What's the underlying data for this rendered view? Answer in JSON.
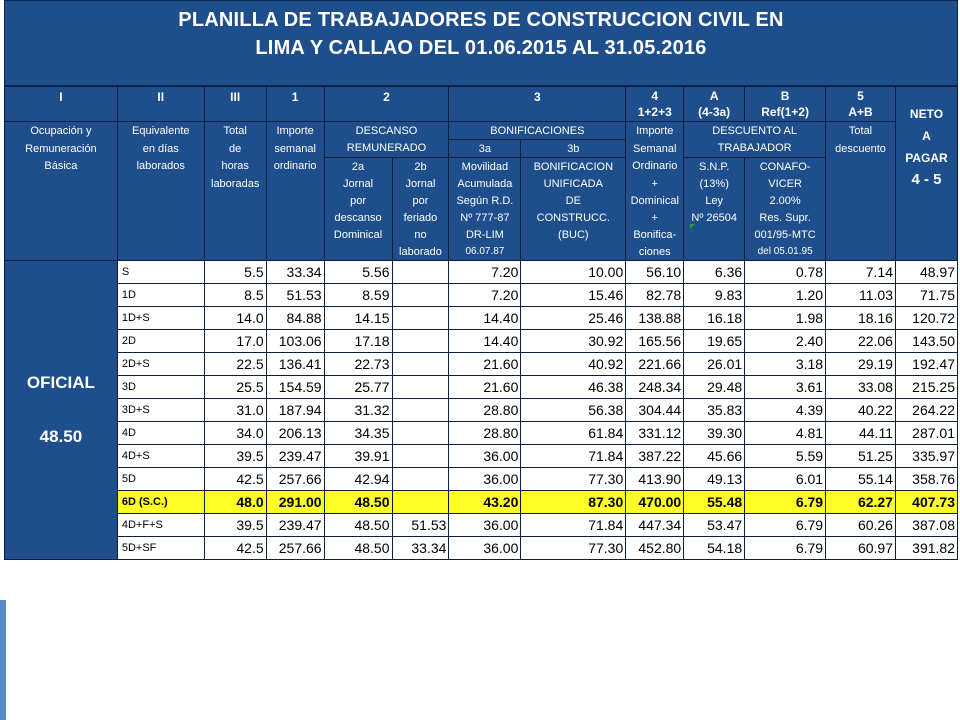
{
  "title": {
    "line1": "PLANILLA DE TRABAJADORES DE CONSTRUCCION CIVIL EN",
    "line2": "LIMA Y CALLAO DEL 01.06.2015 AL 31.05.2016"
  },
  "codes": [
    "I",
    "II",
    "III",
    "1",
    "2",
    "3",
    "4",
    "A",
    "B",
    "5"
  ],
  "formulas": {
    "c4": "1+2+3",
    "cA": "(4-3a)",
    "cB": "Ref(1+2)",
    "c5": "A+B"
  },
  "headers": {
    "ocupacion": [
      "Ocupación y",
      "Remuneración",
      "Básica"
    ],
    "equivalente": [
      "Equivalente",
      "en días",
      "laborados"
    ],
    "total_horas": [
      "Total",
      "de",
      "horas",
      "laboradas"
    ],
    "importe_ord": [
      "Importe",
      "semanal",
      "ordinario"
    ],
    "descanso": [
      "DESCANSO",
      "REMUNERADO"
    ],
    "bonif": "BONIFICACIONES",
    "c3a": "3a",
    "c3b": "3b",
    "c4": [
      "Importe",
      "Semanal",
      "Ordinario",
      "+",
      "Dominical",
      "+",
      "Bonifica-",
      "ciones"
    ],
    "descuento": [
      "DESCUENTO AL",
      "TRABAJADOR"
    ],
    "total_desc": [
      "Total",
      "descuento"
    ],
    "neto": [
      "NETO",
      "A",
      "PAGAR",
      "4 - 5"
    ],
    "c2a": [
      "2a",
      "Jornal",
      "por",
      "descanso",
      "Dominical"
    ],
    "c2b": [
      "2b",
      "Jornal",
      "por",
      "feriado",
      "no",
      "laborado"
    ],
    "c3a_desc": [
      "Movilidad",
      "Acumulada",
      "Según R.D.",
      "Nº 777-87",
      "DR-LIM",
      "06.07.87"
    ],
    "c3b_desc": [
      "BONIFICACION",
      "UNIFICADA",
      "DE",
      "CONSTRUCC.",
      "(BUC)"
    ],
    "cA_desc": [
      "S.N.P.",
      "(13%)",
      "Ley",
      "Nº 26504"
    ],
    "cB_desc": [
      "CONAFO-",
      "VICER",
      "2.00%",
      "Res. Supr.",
      "001/95-MTC",
      "del 05.01.95"
    ]
  },
  "category": {
    "name": "OFICIAL",
    "wage": "48.50"
  },
  "rows": [
    {
      "cat": "S",
      "hrs": "5.5",
      "imp": "33.34",
      "d2a": "5.56",
      "d2b": "",
      "mov": "7.20",
      "buc": "10.00",
      "c4": "56.10",
      "snp": "6.36",
      "conaf": "0.78",
      "tdesc": "7.14",
      "neto": "48.97"
    },
    {
      "cat": "1D",
      "hrs": "8.5",
      "imp": "51.53",
      "d2a": "8.59",
      "d2b": "",
      "mov": "7.20",
      "buc": "15.46",
      "c4": "82.78",
      "snp": "9.83",
      "conaf": "1.20",
      "tdesc": "11.03",
      "neto": "71.75"
    },
    {
      "cat": "1D+S",
      "hrs": "14.0",
      "imp": "84.88",
      "d2a": "14.15",
      "d2b": "",
      "mov": "14.40",
      "buc": "25.46",
      "c4": "138.88",
      "snp": "16.18",
      "conaf": "1.98",
      "tdesc": "18.16",
      "neto": "120.72"
    },
    {
      "cat": "2D",
      "hrs": "17.0",
      "imp": "103.06",
      "d2a": "17.18",
      "d2b": "",
      "mov": "14.40",
      "buc": "30.92",
      "c4": "165.56",
      "snp": "19.65",
      "conaf": "2.40",
      "tdesc": "22.06",
      "neto": "143.50"
    },
    {
      "cat": "2D+S",
      "hrs": "22.5",
      "imp": "136.41",
      "d2a": "22.73",
      "d2b": "",
      "mov": "21.60",
      "buc": "40.92",
      "c4": "221.66",
      "snp": "26.01",
      "conaf": "3.18",
      "tdesc": "29.19",
      "neto": "192.47"
    },
    {
      "cat": "3D",
      "hrs": "25.5",
      "imp": "154.59",
      "d2a": "25.77",
      "d2b": "",
      "mov": "21.60",
      "buc": "46.38",
      "c4": "248.34",
      "snp": "29.48",
      "conaf": "3.61",
      "tdesc": "33.08",
      "neto": "215.25"
    },
    {
      "cat": "3D+S",
      "hrs": "31.0",
      "imp": "187.94",
      "d2a": "31.32",
      "d2b": "",
      "mov": "28.80",
      "buc": "56.38",
      "c4": "304.44",
      "snp": "35.83",
      "conaf": "4.39",
      "tdesc": "40.22",
      "neto": "264.22"
    },
    {
      "cat": "4D",
      "hrs": "34.0",
      "imp": "206.13",
      "d2a": "34.35",
      "d2b": "",
      "mov": "28.80",
      "buc": "61.84",
      "c4": "331.12",
      "snp": "39.30",
      "conaf": "4.81",
      "tdesc": "44.11",
      "neto": "287.01"
    },
    {
      "cat": "4D+S",
      "hrs": "39.5",
      "imp": "239.47",
      "d2a": "39.91",
      "d2b": "",
      "mov": "36.00",
      "buc": "71.84",
      "c4": "387.22",
      "snp": "45.66",
      "conaf": "5.59",
      "tdesc": "51.25",
      "neto": "335.97"
    },
    {
      "cat": "5D",
      "hrs": "42.5",
      "imp": "257.66",
      "d2a": "42.94",
      "d2b": "",
      "mov": "36.00",
      "buc": "77.30",
      "c4": "413.90",
      "snp": "49.13",
      "conaf": "6.01",
      "tdesc": "55.14",
      "neto": "358.76"
    },
    {
      "cat": "6D (S.C.)",
      "hrs": "48.0",
      "imp": "291.00",
      "d2a": "48.50",
      "d2b": "",
      "mov": "43.20",
      "buc": "87.30",
      "c4": "470.00",
      "snp": "55.48",
      "conaf": "6.79",
      "tdesc": "62.27",
      "neto": "407.73"
    },
    {
      "cat": "4D+F+S",
      "hrs": "39.5",
      "imp": "239.47",
      "d2a": "48.50",
      "d2b": "51.53",
      "mov": "36.00",
      "buc": "71.84",
      "c4": "447.34",
      "snp": "53.47",
      "conaf": "6.79",
      "tdesc": "60.26",
      "neto": "387.08"
    },
    {
      "cat": "5D+SF",
      "hrs": "42.5",
      "imp": "257.66",
      "d2a": "48.50",
      "d2b": "33.34",
      "mov": "36.00",
      "buc": "77.30",
      "c4": "452.80",
      "snp": "54.18",
      "conaf": "6.79",
      "tdesc": "60.97",
      "neto": "391.82"
    }
  ],
  "highlight_color": "#ffff26",
  "header_color": "#1f4e8c"
}
